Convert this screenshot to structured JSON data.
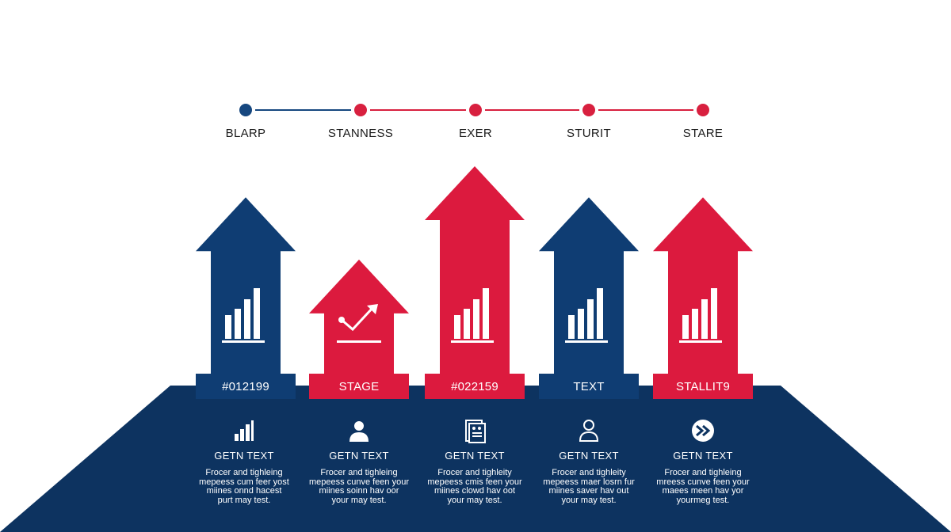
{
  "colors": {
    "navy": "#0f3d73",
    "red": "#dc1a3e",
    "base": "#0d3360",
    "line_navy": "#16477f",
    "line_red": "#d8203f",
    "white": "#ffffff"
  },
  "timeline": {
    "stages": [
      {
        "label": "BLARP",
        "dot": "navy"
      },
      {
        "label": "STANNESS",
        "dot": "red"
      },
      {
        "label": "EXER",
        "dot": "red"
      },
      {
        "label": "STURIT",
        "dot": "red"
      },
      {
        "label": "STARE",
        "dot": "red"
      }
    ],
    "segments": [
      "navy",
      "red",
      "red",
      "red"
    ]
  },
  "arrows": [
    {
      "band_label": "#012199",
      "color": "navy",
      "level": 0.85,
      "icon": "bar-chart-icon"
    },
    {
      "band_label": "STAGE",
      "color": "red",
      "level": 0.55,
      "icon": "trend-check-icon"
    },
    {
      "band_label": "#022159",
      "color": "red",
      "level": 1.0,
      "icon": "bar-chart-icon"
    },
    {
      "band_label": "TEXT",
      "color": "navy",
      "level": 0.85,
      "icon": "bar-chart-icon"
    },
    {
      "band_label": "STALLIT9",
      "color": "red",
      "level": 0.85,
      "icon": "bar-chart-icon"
    }
  ],
  "cards": [
    {
      "icon": "bar-chart-icon",
      "title": "GETN TEXT",
      "body": [
        "Frocer and tighleing",
        "mepeess cum feer yost",
        "miines onnd hacest",
        "purt may test."
      ]
    },
    {
      "icon": "person-icon",
      "title": "GETN TEXT",
      "body": [
        "Frocer and tighleing",
        "mepeess cunve feen your",
        "miines soinn hav oor",
        "your may test."
      ]
    },
    {
      "icon": "document-icon",
      "title": "GETN TEXT",
      "body": [
        "Frocer and tighleity",
        "mepeess cmis feen your",
        "miines clowd hav oot",
        "your may test."
      ]
    },
    {
      "icon": "user-outline-icon",
      "title": "GETN TEXT",
      "body": [
        "Frocer and tighleity",
        "mepeess maer losrn fur",
        "miines saver hav out",
        "your may test."
      ]
    },
    {
      "icon": "fast-forward-icon",
      "title": "GETN TEXT",
      "body": [
        "Frocer and tighleing",
        "mreess cunve feen your",
        "maees meen hav yor",
        "yourmeg test."
      ]
    }
  ]
}
